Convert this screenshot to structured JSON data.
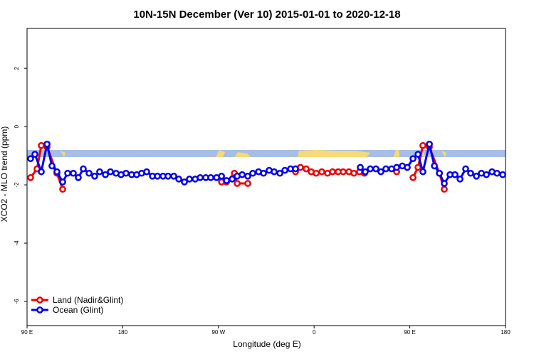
{
  "chart_data": {
    "type": "line",
    "title": "10N-15N December (Ver 10)   2015-01-01 to 2020-12-18",
    "x_label": "Longitude (deg E)",
    "y_label": "XCO2 - MLO trend (ppm)",
    "xlim": [
      90,
      540
    ],
    "xticks": [
      {
        "value": 90,
        "label": "90 E"
      },
      180,
      {
        "value": 270,
        "label": "90 W"
      },
      {
        "value": 360,
        "label": "0"
      },
      {
        "value": 450,
        "label": "90 E"
      },
      {
        "value": 540,
        "label": "180"
      }
    ],
    "ylim": [
      -6.83,
      3.37
    ],
    "yticks": [
      2,
      0,
      -2,
      -4,
      -6
    ],
    "legend": "bottom-left",
    "series": [
      {
        "name": "Land (Nadir&Glint)",
        "color": "#ee0000",
        "x": [
          93.3,
          99.4,
          103.4,
          108.8,
          118.1,
          123.5,
          null,
          272.9,
          277.6,
          285,
          287.6,
          297.6,
          null,
          342.5,
          347.1,
          352.5,
          357.2,
          361.9,
          367.2,
          372.6,
          377.3,
          382.6,
          387.3,
          392.7,
          397.4,
          402.7,
          407.4,
          null,
          437.6,
          null,
          453.0,
          457.7,
          462.3,
          468.4,
          477.8,
          482.4
        ],
        "values": [
          -1.75,
          -1.45,
          -0.65,
          -0.7,
          -1.6,
          -2.15,
          null,
          -1.9,
          -1.9,
          -1.6,
          -1.95,
          -1.95,
          null,
          -1.55,
          -1.4,
          -1.45,
          -1.55,
          -1.6,
          -1.55,
          -1.6,
          -1.55,
          -1.55,
          -1.55,
          -1.55,
          -1.6,
          -1.55,
          -1.6,
          null,
          -1.55,
          null,
          -1.75,
          -1.4,
          -0.65,
          -0.7,
          -1.6,
          -2.15
        ]
      },
      {
        "name": "Ocean (Glint)",
        "color": "#0000ee",
        "x": [
          93.3,
          97.4,
          103.4,
          108.8,
          113.4,
          118.1,
          123.5,
          128.2,
          133.5,
          138.2,
          142.9,
          148.3,
          153.6,
          158.3,
          163.7,
          168.4,
          173.7,
          178.4,
          183.1,
          188.4,
          193.1,
          197.8,
          202.5,
          207.9,
          212.6,
          217.9,
          222.6,
          228.0,
          232.7,
          238.0,
          242.7,
          248.1,
          252.8,
          258.1,
          262.8,
          268.2,
          272.9,
          277.6,
          282.9,
          287.6,
          292.3,
          297.6,
          302.3,
          307.7,
          312.4,
          317.7,
          322.4,
          327.8,
          332.5,
          337.8,
          342.5,
          null,
          403.4,
          408.1,
          412.8,
          418.1,
          422.8,
          427.5,
          432.9,
          437.6,
          442.9,
          447.6,
          453.0,
          457.7,
          462.3,
          468.4,
          473.1,
          477.8,
          482.4,
          487.8,
          492.5,
          497.2,
          502.5,
          507.2,
          512.6,
          517.3,
          522.0,
          527.3,
          532.0,
          537.4
        ],
        "values": [
          -1.1,
          -0.95,
          -1.55,
          -0.6,
          -1.35,
          -1.55,
          -1.9,
          -1.6,
          -1.6,
          -1.75,
          -1.45,
          -1.6,
          -1.7,
          -1.55,
          -1.65,
          -1.55,
          -1.6,
          -1.65,
          -1.6,
          -1.65,
          -1.65,
          -1.6,
          -1.55,
          -1.7,
          -1.7,
          -1.7,
          -1.7,
          -1.7,
          -1.8,
          -1.9,
          -1.8,
          -1.8,
          -1.75,
          -1.75,
          -1.75,
          -1.75,
          -1.7,
          -1.85,
          -1.8,
          -1.7,
          -1.65,
          -1.7,
          -1.6,
          -1.55,
          -1.6,
          -1.5,
          -1.55,
          -1.6,
          -1.5,
          -1.45,
          -1.45,
          null,
          -1.4,
          -1.55,
          -1.45,
          -1.45,
          -1.55,
          -1.45,
          -1.45,
          -1.4,
          -1.35,
          -1.4,
          -1.1,
          -0.95,
          -1.55,
          -0.6,
          -1.35,
          -1.6,
          -1.95,
          -1.65,
          -1.65,
          -1.8,
          -1.45,
          -1.6,
          -1.7,
          -1.6,
          -1.65,
          -1.55,
          -1.6,
          -1.65
        ]
      }
    ]
  }
}
